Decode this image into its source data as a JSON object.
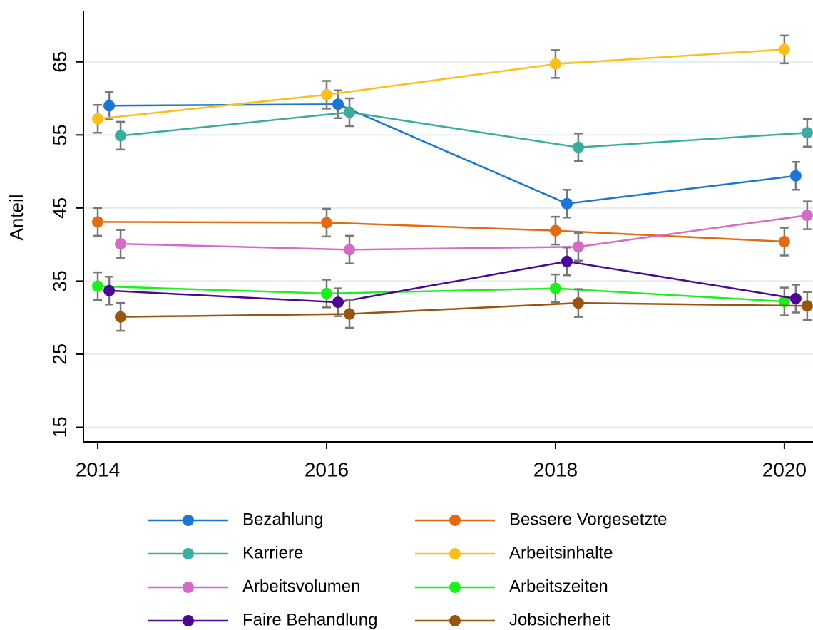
{
  "chart_data": {
    "type": "line",
    "y_label": "Anteil",
    "x": [
      2014,
      2016,
      2018,
      2020
    ],
    "xlim": [
      2013.875,
      2020.25
    ],
    "xticks": [
      2014,
      2016,
      2018,
      2020
    ],
    "ylim": [
      13,
      72
    ],
    "yticks": [
      15,
      25,
      35,
      45,
      55,
      65
    ],
    "grid": true,
    "legend": "bottom",
    "series": [
      {
        "name": "Bezahlung",
        "color": "#1a76d2",
        "values": [
          59.0,
          59.2,
          45.6,
          49.4
        ],
        "errors": [
          1.9,
          1.9,
          1.9,
          1.9
        ]
      },
      {
        "name": "Bessere Vorgesetzte",
        "color": "#e36a10",
        "values": [
          43.1,
          43.0,
          41.9,
          40.4
        ],
        "errors": [
          1.9,
          1.9,
          1.9,
          1.9
        ]
      },
      {
        "name": "Karriere",
        "color": "#3aada0",
        "values": [
          54.9,
          58.1,
          53.3,
          55.3
        ],
        "errors": [
          1.9,
          1.9,
          1.9,
          1.9
        ]
      },
      {
        "name": "Arbeitsinhalte",
        "color": "#fbbf1a",
        "values": [
          57.2,
          60.5,
          64.7,
          66.7
        ],
        "errors": [
          1.9,
          1.9,
          1.9,
          1.9
        ]
      },
      {
        "name": "Arbeitsvolumen",
        "color": "#d56bc4",
        "values": [
          40.1,
          39.3,
          39.7,
          44.0
        ],
        "errors": [
          1.9,
          1.9,
          1.9,
          1.9
        ]
      },
      {
        "name": "Arbeitszeiten",
        "color": "#1ef01e",
        "values": [
          34.3,
          33.3,
          34.0,
          32.2
        ],
        "errors": [
          1.9,
          1.9,
          1.9,
          1.9
        ]
      },
      {
        "name": "Faire Behandlung",
        "color": "#4b0896",
        "values": [
          33.7,
          32.1,
          37.7,
          32.6
        ],
        "errors": [
          1.9,
          1.9,
          1.9,
          1.9
        ]
      },
      {
        "name": "Jobsicherheit",
        "color": "#9a5410",
        "values": [
          30.1,
          30.5,
          32.0,
          31.6
        ],
        "errors": [
          1.9,
          1.9,
          1.9,
          1.9
        ]
      }
    ]
  }
}
